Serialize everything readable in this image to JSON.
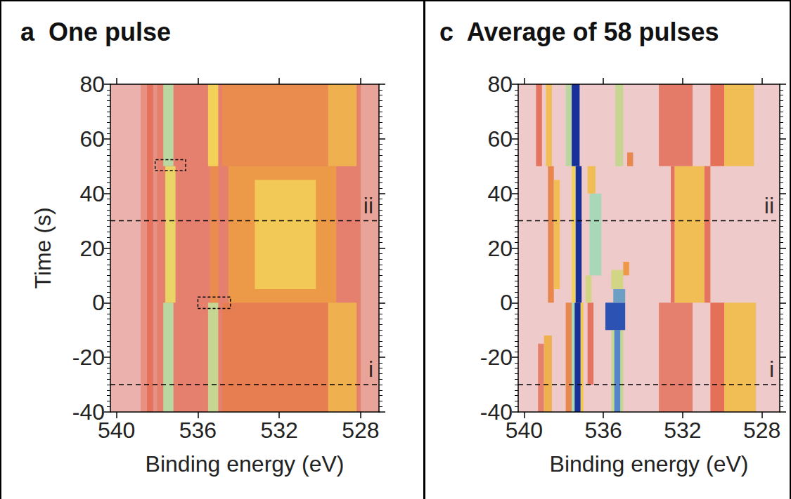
{
  "chart_data": [
    {
      "type": "heatmap",
      "label": "a",
      "title": "One pulse",
      "x_label": "Binding energy (eV)",
      "y_label": "Time (s)",
      "xlim": [
        540.3,
        527.1
      ],
      "xticks": [
        540,
        536,
        532,
        528
      ],
      "ylim": [
        -40,
        80
      ],
      "yticks": [
        -40,
        -20,
        0,
        20,
        40,
        60,
        80
      ],
      "color_range": [
        0,
        1
      ],
      "cells": [
        [
          540.3,
          527.1,
          -40,
          80,
          0.3
        ],
        [
          540.3,
          538.8,
          -40,
          80,
          0.17
        ],
        [
          538.8,
          538.0,
          -40,
          80,
          0.24
        ],
        [
          538.5,
          538.2,
          -40,
          80,
          0.36
        ],
        [
          537.7,
          537.2,
          -40,
          0,
          0.72
        ],
        [
          537.6,
          537.1,
          0,
          50,
          0.64
        ],
        [
          537.7,
          537.2,
          50,
          80,
          0.72
        ],
        [
          535.5,
          535.0,
          -40,
          0,
          0.7
        ],
        [
          535.4,
          535.0,
          0,
          50,
          0.46
        ],
        [
          535.5,
          535.0,
          50,
          80,
          0.62
        ],
        [
          534.8,
          529.6,
          -40,
          0,
          0.42
        ],
        [
          534.8,
          529.6,
          50,
          80,
          0.46
        ],
        [
          534.5,
          529.2,
          0,
          50,
          0.5
        ],
        [
          533.2,
          530.2,
          5,
          45,
          0.6
        ],
        [
          529.6,
          528.2,
          -40,
          0,
          0.55
        ],
        [
          529.6,
          528.2,
          50,
          80,
          0.55
        ],
        [
          528.0,
          527.1,
          -40,
          80,
          0.2
        ]
      ],
      "lines": [
        {
          "y": 30,
          "label": "ii"
        },
        {
          "y": -30,
          "label": "i"
        }
      ],
      "boxes": [
        [
          538.1,
          536.6,
          48.3,
          52.4
        ],
        [
          536.0,
          534.4,
          -2.1,
          2.1
        ]
      ]
    },
    {
      "type": "heatmap",
      "label": "c",
      "title": "Average of 58 pulses",
      "x_label": "Binding energy (eV)",
      "xlim": [
        540.3,
        527.1
      ],
      "xticks": [
        540,
        536,
        532,
        528
      ],
      "ylim": [
        -40,
        80
      ],
      "yticks": [
        -40,
        -20,
        0,
        20,
        40,
        60,
        80
      ],
      "color_range": [
        0,
        1
      ],
      "cells": [
        [
          540.3,
          527.1,
          -40,
          80,
          0.12
        ],
        [
          539.3,
          539.0,
          -40,
          -15,
          0.3
        ],
        [
          539.0,
          538.6,
          -40,
          -12,
          0.55
        ],
        [
          537.9,
          537.6,
          -40,
          0,
          0.45
        ],
        [
          537.6,
          537.45,
          -40,
          0,
          0.75
        ],
        [
          537.45,
          537.15,
          -40,
          0,
          0.97
        ],
        [
          537.15,
          537.0,
          -40,
          0,
          0.6
        ],
        [
          536.8,
          536.5,
          -30,
          0,
          0.35
        ],
        [
          535.6,
          535.0,
          -40,
          -10,
          0.7
        ],
        [
          535.45,
          535.15,
          -40,
          -10,
          0.85
        ],
        [
          535.9,
          534.9,
          -10,
          0,
          0.92
        ],
        [
          533.2,
          531.5,
          -40,
          0,
          0.3
        ],
        [
          530.6,
          529.9,
          -40,
          0,
          0.38
        ],
        [
          529.9,
          528.3,
          -40,
          0,
          0.58
        ],
        [
          538.8,
          538.5,
          0,
          50,
          0.45
        ],
        [
          538.5,
          538.2,
          5,
          45,
          0.58
        ],
        [
          537.6,
          537.4,
          0,
          50,
          0.62
        ],
        [
          537.4,
          537.1,
          0,
          50,
          0.97
        ],
        [
          536.9,
          536.6,
          0,
          10,
          0.68
        ],
        [
          536.7,
          536.1,
          10,
          40,
          0.75
        ],
        [
          536.8,
          536.4,
          40,
          50,
          0.58
        ],
        [
          535.5,
          534.9,
          0,
          5,
          0.82
        ],
        [
          535.6,
          535.0,
          5,
          12,
          0.68
        ],
        [
          535.0,
          534.7,
          10,
          15,
          0.5
        ],
        [
          532.6,
          532.4,
          0,
          50,
          0.35
        ],
        [
          532.4,
          530.9,
          0,
          50,
          0.58
        ],
        [
          530.9,
          530.6,
          0,
          50,
          0.35
        ],
        [
          539.4,
          539.1,
          50,
          80,
          0.35
        ],
        [
          538.9,
          538.6,
          50,
          80,
          0.58
        ],
        [
          537.9,
          537.6,
          50,
          80,
          0.72
        ],
        [
          537.6,
          537.2,
          50,
          80,
          0.97
        ],
        [
          535.4,
          535.0,
          50,
          80,
          0.7
        ],
        [
          534.8,
          534.5,
          50,
          55,
          0.45
        ],
        [
          533.2,
          531.5,
          50,
          80,
          0.32
        ],
        [
          530.6,
          529.9,
          50,
          80,
          0.38
        ],
        [
          529.9,
          528.4,
          50,
          80,
          0.58
        ]
      ],
      "lines": [
        {
          "y": 30,
          "label": "ii"
        },
        {
          "y": -30,
          "label": "i"
        }
      ]
    }
  ]
}
